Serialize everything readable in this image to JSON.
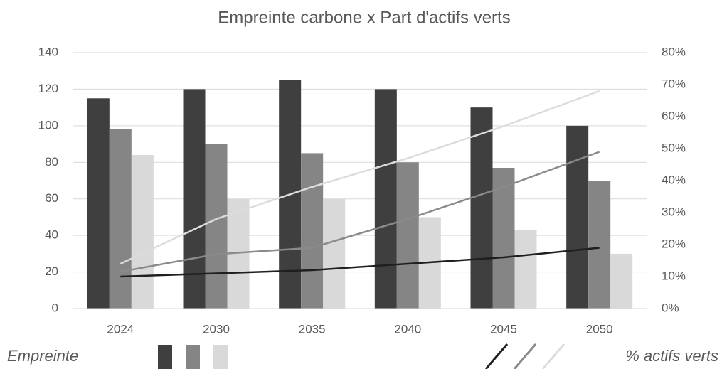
{
  "chart_data": {
    "type": "bar",
    "title": "Empreinte carbone x Part d'actifs verts",
    "categories": [
      "2024",
      "2030",
      "2035",
      "2040",
      "2045",
      "2050"
    ],
    "series": [
      {
        "type": "bar",
        "color": "#3f3f3f",
        "values": [
          115,
          120,
          125,
          120,
          110,
          100
        ]
      },
      {
        "type": "bar",
        "color": "#858585",
        "values": [
          98,
          90,
          85,
          80,
          77,
          70
        ]
      },
      {
        "type": "bar",
        "color": "#d9d9d9",
        "values": [
          84,
          60,
          60,
          50,
          43,
          30
        ]
      },
      {
        "type": "line",
        "axis": "y2",
        "color": "#1f1f1f",
        "values": [
          10,
          11,
          12,
          14,
          16,
          19
        ]
      },
      {
        "type": "line",
        "axis": "y2",
        "color": "#8a8a8a",
        "values": [
          11.5,
          17,
          19,
          28,
          38,
          49
        ]
      },
      {
        "type": "line",
        "axis": "y2",
        "color": "#dcdcdc",
        "values": [
          14,
          28,
          38,
          47,
          57,
          68
        ]
      }
    ],
    "legend": {
      "bars": "Empreinte",
      "lines": "% actifs verts"
    },
    "ylim": [
      0,
      140
    ],
    "yticks": [
      0,
      20,
      40,
      60,
      80,
      100,
      120,
      140
    ],
    "y2lim": [
      0,
      80
    ],
    "y2ticks": [
      {
        "value": 0,
        "label": "0%"
      },
      {
        "value": 10,
        "label": "10%"
      },
      {
        "value": 20,
        "label": "20%"
      },
      {
        "value": 30,
        "label": "30%"
      },
      {
        "value": 40,
        "label": "40%"
      },
      {
        "value": 50,
        "label": "50%"
      },
      {
        "value": 60,
        "label": "60%"
      },
      {
        "value": 70,
        "label": "70%"
      },
      {
        "value": 80,
        "label": "80%"
      }
    ],
    "grid": true
  }
}
